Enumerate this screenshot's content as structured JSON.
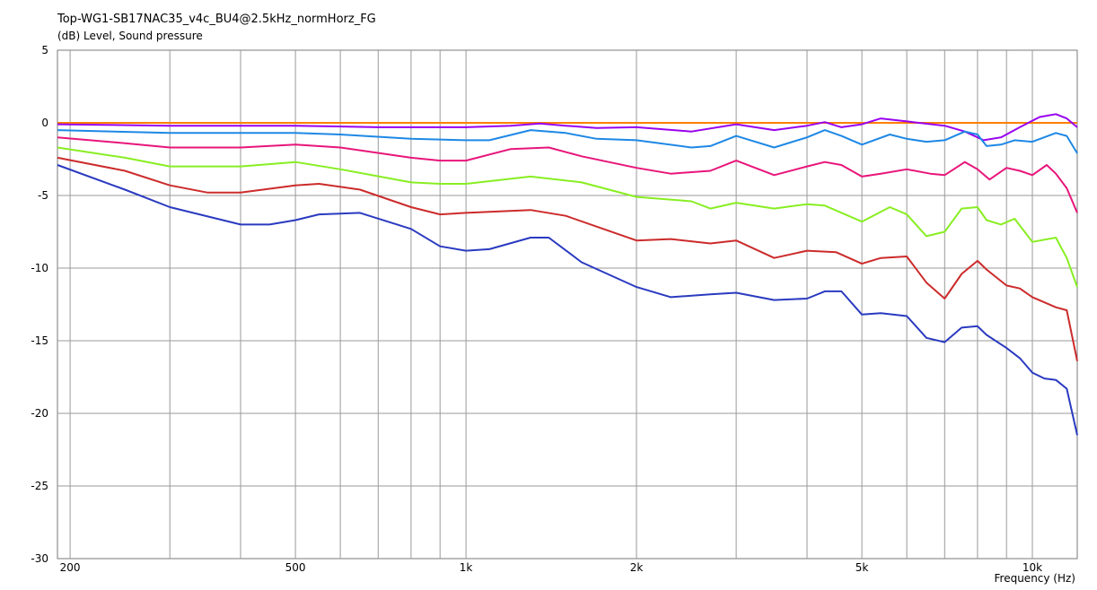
{
  "chart_data": {
    "type": "line",
    "title": "Top-WG1-SB17NAC35_v4c_BU4@2.5kHz_normHorz_FG",
    "ylabel": "(dB)  Level, Sound pressure",
    "xlabel": "Frequency  (Hz)",
    "x_scale": "log",
    "xlim": [
      190,
      12000
    ],
    "ylim": [
      -30,
      5
    ],
    "grid": true,
    "x_ticks": [
      {
        "value": 200,
        "label": "200"
      },
      {
        "value": 500,
        "label": "500"
      },
      {
        "value": 1000,
        "label": "1k"
      },
      {
        "value": 2000,
        "label": "2k"
      },
      {
        "value": 5000,
        "label": "5k"
      },
      {
        "value": 10000,
        "label": "10k"
      }
    ],
    "y_ticks": [
      {
        "value": 5,
        "label": "5"
      },
      {
        "value": 0,
        "label": "0"
      },
      {
        "value": -5,
        "label": "-5"
      },
      {
        "value": -10,
        "label": "-10"
      },
      {
        "value": -15,
        "label": "-15"
      },
      {
        "value": -20,
        "label": "-20"
      },
      {
        "value": -25,
        "label": "-25"
      },
      {
        "value": -30,
        "label": "-30"
      }
    ],
    "series": [
      {
        "color": "#ff8000",
        "points": [
          [
            190,
            0
          ],
          [
            12000,
            0
          ]
        ]
      },
      {
        "color": "#9900ee",
        "points": [
          [
            190,
            -0.1
          ],
          [
            300,
            -0.2
          ],
          [
            500,
            -0.2
          ],
          [
            700,
            -0.3
          ],
          [
            1000,
            -0.3
          ],
          [
            1200,
            -0.2
          ],
          [
            1350,
            -0.05
          ],
          [
            1500,
            -0.2
          ],
          [
            1700,
            -0.35
          ],
          [
            2000,
            -0.3
          ],
          [
            2500,
            -0.6
          ],
          [
            3000,
            -0.1
          ],
          [
            3500,
            -0.5
          ],
          [
            4000,
            -0.2
          ],
          [
            4300,
            0.05
          ],
          [
            4600,
            -0.3
          ],
          [
            5000,
            -0.1
          ],
          [
            5400,
            0.3
          ],
          [
            6000,
            0.1
          ],
          [
            7000,
            -0.2
          ],
          [
            7600,
            -0.6
          ],
          [
            8200,
            -1.2
          ],
          [
            8800,
            -1.0
          ],
          [
            9500,
            -0.3
          ],
          [
            10300,
            0.4
          ],
          [
            11000,
            0.6
          ],
          [
            11500,
            0.3
          ],
          [
            12000,
            -0.3
          ]
        ]
      },
      {
        "color": "#1e88e5",
        "points": [
          [
            190,
            -0.5
          ],
          [
            300,
            -0.7
          ],
          [
            500,
            -0.7
          ],
          [
            600,
            -0.8
          ],
          [
            800,
            -1.1
          ],
          [
            1000,
            -1.2
          ],
          [
            1100,
            -1.2
          ],
          [
            1300,
            -0.5
          ],
          [
            1500,
            -0.7
          ],
          [
            1700,
            -1.1
          ],
          [
            2000,
            -1.2
          ],
          [
            2500,
            -1.7
          ],
          [
            2700,
            -1.6
          ],
          [
            3000,
            -0.9
          ],
          [
            3500,
            -1.7
          ],
          [
            4000,
            -1.0
          ],
          [
            4300,
            -0.5
          ],
          [
            4600,
            -0.9
          ],
          [
            5000,
            -1.5
          ],
          [
            5600,
            -0.8
          ],
          [
            6000,
            -1.1
          ],
          [
            6500,
            -1.3
          ],
          [
            7000,
            -1.2
          ],
          [
            7600,
            -0.6
          ],
          [
            8000,
            -0.8
          ],
          [
            8300,
            -1.6
          ],
          [
            8800,
            -1.5
          ],
          [
            9300,
            -1.2
          ],
          [
            10000,
            -1.3
          ],
          [
            11000,
            -0.7
          ],
          [
            11500,
            -0.9
          ],
          [
            12000,
            -2.1
          ]
        ]
      },
      {
        "color": "#e8157a",
        "points": [
          [
            190,
            -1.0
          ],
          [
            250,
            -1.4
          ],
          [
            300,
            -1.7
          ],
          [
            400,
            -1.7
          ],
          [
            500,
            -1.5
          ],
          [
            600,
            -1.7
          ],
          [
            800,
            -2.4
          ],
          [
            900,
            -2.6
          ],
          [
            1000,
            -2.6
          ],
          [
            1200,
            -1.8
          ],
          [
            1400,
            -1.7
          ],
          [
            1600,
            -2.3
          ],
          [
            2000,
            -3.1
          ],
          [
            2300,
            -3.5
          ],
          [
            2700,
            -3.3
          ],
          [
            3000,
            -2.6
          ],
          [
            3500,
            -3.6
          ],
          [
            4000,
            -3.0
          ],
          [
            4300,
            -2.7
          ],
          [
            4600,
            -2.9
          ],
          [
            5000,
            -3.7
          ],
          [
            5400,
            -3.5
          ],
          [
            6000,
            -3.2
          ],
          [
            6600,
            -3.5
          ],
          [
            7000,
            -3.6
          ],
          [
            7600,
            -2.7
          ],
          [
            8000,
            -3.2
          ],
          [
            8400,
            -3.9
          ],
          [
            9000,
            -3.1
          ],
          [
            9500,
            -3.3
          ],
          [
            10000,
            -3.6
          ],
          [
            10600,
            -2.9
          ],
          [
            11000,
            -3.5
          ],
          [
            11500,
            -4.5
          ],
          [
            12000,
            -6.2
          ]
        ]
      },
      {
        "color": "#88ee22",
        "points": [
          [
            190,
            -1.7
          ],
          [
            250,
            -2.4
          ],
          [
            300,
            -3.0
          ],
          [
            400,
            -3.0
          ],
          [
            500,
            -2.7
          ],
          [
            600,
            -3.2
          ],
          [
            800,
            -4.1
          ],
          [
            900,
            -4.2
          ],
          [
            1000,
            -4.2
          ],
          [
            1300,
            -3.7
          ],
          [
            1600,
            -4.1
          ],
          [
            2000,
            -5.1
          ],
          [
            2500,
            -5.4
          ],
          [
            2700,
            -5.9
          ],
          [
            3000,
            -5.5
          ],
          [
            3500,
            -5.9
          ],
          [
            4000,
            -5.6
          ],
          [
            4300,
            -5.7
          ],
          [
            5000,
            -6.8
          ],
          [
            5600,
            -5.8
          ],
          [
            6000,
            -6.3
          ],
          [
            6500,
            -7.8
          ],
          [
            7000,
            -7.5
          ],
          [
            7500,
            -5.9
          ],
          [
            8000,
            -5.8
          ],
          [
            8300,
            -6.7
          ],
          [
            8800,
            -7.0
          ],
          [
            9300,
            -6.6
          ],
          [
            10000,
            -8.2
          ],
          [
            11000,
            -7.9
          ],
          [
            11500,
            -9.3
          ],
          [
            12000,
            -11.3
          ]
        ]
      },
      {
        "color": "#cc2b2b",
        "points": [
          [
            190,
            -2.4
          ],
          [
            250,
            -3.3
          ],
          [
            300,
            -4.3
          ],
          [
            350,
            -4.8
          ],
          [
            400,
            -4.8
          ],
          [
            500,
            -4.3
          ],
          [
            550,
            -4.2
          ],
          [
            650,
            -4.6
          ],
          [
            800,
            -5.8
          ],
          [
            900,
            -6.3
          ],
          [
            1000,
            -6.2
          ],
          [
            1300,
            -6.0
          ],
          [
            1500,
            -6.4
          ],
          [
            2000,
            -8.1
          ],
          [
            2300,
            -8.0
          ],
          [
            2700,
            -8.3
          ],
          [
            3000,
            -8.1
          ],
          [
            3500,
            -9.3
          ],
          [
            4000,
            -8.8
          ],
          [
            4500,
            -8.9
          ],
          [
            5000,
            -9.7
          ],
          [
            5400,
            -9.3
          ],
          [
            6000,
            -9.2
          ],
          [
            6500,
            -11.0
          ],
          [
            7000,
            -12.1
          ],
          [
            7500,
            -10.4
          ],
          [
            8000,
            -9.5
          ],
          [
            8300,
            -10.1
          ],
          [
            9000,
            -11.2
          ],
          [
            9500,
            -11.4
          ],
          [
            10000,
            -12.0
          ],
          [
            11000,
            -12.7
          ],
          [
            11500,
            -12.9
          ],
          [
            12000,
            -16.4
          ]
        ]
      },
      {
        "color": "#2a3ac0",
        "points": [
          [
            190,
            -2.9
          ],
          [
            250,
            -4.6
          ],
          [
            300,
            -5.8
          ],
          [
            400,
            -7.0
          ],
          [
            450,
            -7.0
          ],
          [
            500,
            -6.7
          ],
          [
            550,
            -6.3
          ],
          [
            650,
            -6.2
          ],
          [
            800,
            -7.3
          ],
          [
            900,
            -8.5
          ],
          [
            1000,
            -8.8
          ],
          [
            1100,
            -8.7
          ],
          [
            1300,
            -7.9
          ],
          [
            1400,
            -7.9
          ],
          [
            1600,
            -9.6
          ],
          [
            2000,
            -11.3
          ],
          [
            2300,
            -12.0
          ],
          [
            2700,
            -11.8
          ],
          [
            3000,
            -11.7
          ],
          [
            3500,
            -12.2
          ],
          [
            4000,
            -12.1
          ],
          [
            4300,
            -11.6
          ],
          [
            4600,
            -11.6
          ],
          [
            5000,
            -13.2
          ],
          [
            5400,
            -13.1
          ],
          [
            6000,
            -13.3
          ],
          [
            6500,
            -14.8
          ],
          [
            7000,
            -15.1
          ],
          [
            7500,
            -14.1
          ],
          [
            8000,
            -14.0
          ],
          [
            8300,
            -14.6
          ],
          [
            9000,
            -15.5
          ],
          [
            9500,
            -16.2
          ],
          [
            10000,
            -17.2
          ],
          [
            10500,
            -17.6
          ],
          [
            11000,
            -17.7
          ],
          [
            11500,
            -18.3
          ],
          [
            12000,
            -21.5
          ]
        ]
      }
    ]
  }
}
